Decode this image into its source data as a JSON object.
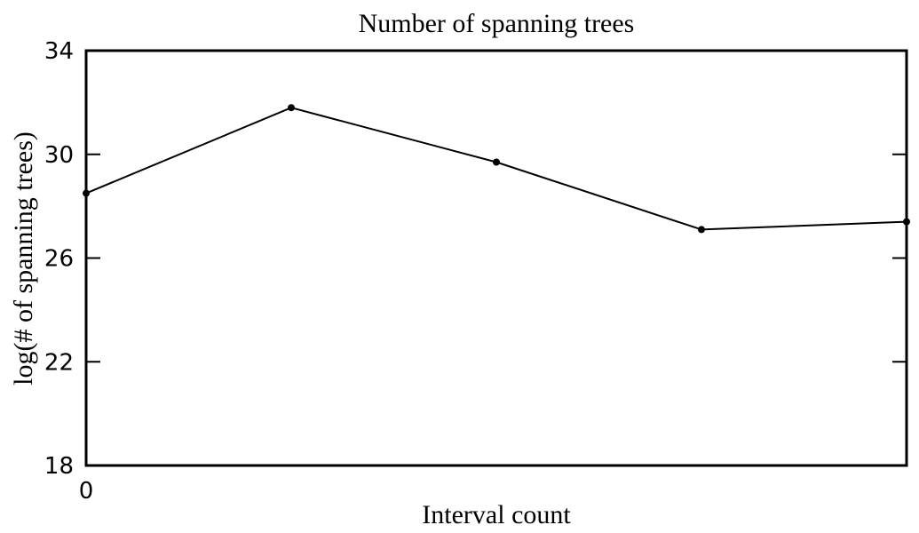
{
  "chart_data": {
    "type": "line",
    "title": "Number of spanning trees",
    "xlabel": "Interval count",
    "ylabel": "log(# of spanning trees)",
    "ylim": [
      18,
      34
    ],
    "yticks": [
      18,
      22,
      26,
      30,
      34
    ],
    "xlim": [
      0,
      4
    ],
    "xticks": [
      0
    ],
    "xtick_labels": [
      "0"
    ],
    "grid": false,
    "series": [
      {
        "x": [
          0,
          1,
          2,
          3,
          4
        ],
        "values": [
          28.5,
          31.8,
          29.7,
          27.1,
          27.4
        ]
      }
    ],
    "colors": {
      "line": "#000000",
      "axes": "#000000"
    }
  }
}
